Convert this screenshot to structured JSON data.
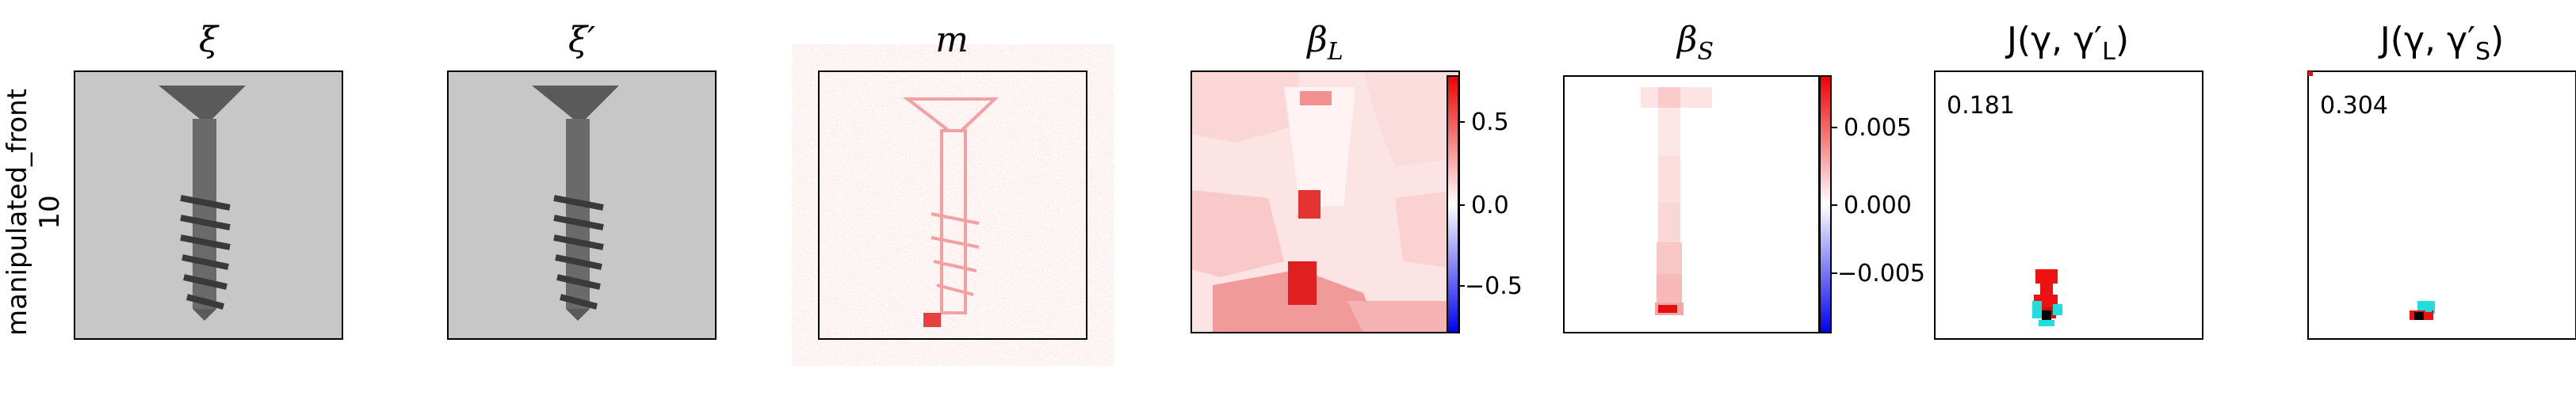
{
  "row_label": {
    "line1": "manipulated_front",
    "line2": "10"
  },
  "panels": [
    {
      "id": "xi",
      "title": "ξ"
    },
    {
      "id": "xi_prime",
      "title": "ξ′"
    },
    {
      "id": "m",
      "title": "m"
    },
    {
      "id": "beta_L",
      "title": "β",
      "title_sub": "L",
      "colorbar": {
        "ticks": [
          "0.5",
          "0.0",
          "−0.5"
        ]
      }
    },
    {
      "id": "beta_S",
      "title": "β",
      "title_sub": "S",
      "colorbar": {
        "ticks": [
          "0.005",
          "0.000",
          "−0.005"
        ]
      }
    },
    {
      "id": "J_L",
      "title_prefix": "J(γ, γ′",
      "title_sub": "L",
      "title_suffix": ")",
      "annotation": "0.181"
    },
    {
      "id": "J_S",
      "title_prefix": "J(γ, γ′",
      "title_sub": "S",
      "title_suffix": ")",
      "annotation": "0.304"
    }
  ],
  "colors": {
    "red": "#ee1111",
    "blue": "#1111ee",
    "cyan": "#22dddd",
    "black": "#000000"
  }
}
